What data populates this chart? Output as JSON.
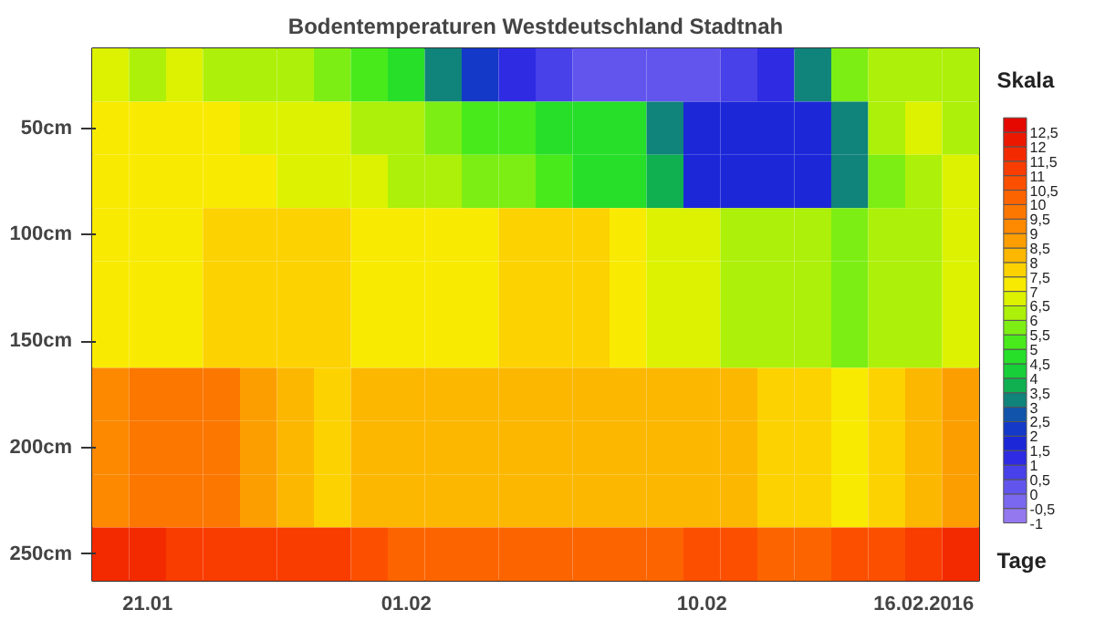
{
  "chart_data": {
    "type": "heatmap",
    "title": "Bodentemperaturen Westdeutschland Stadtnah",
    "xlabel": "Tage",
    "clabel": "Skala",
    "categories": [
      null,
      "21.01",
      null,
      null,
      null,
      null,
      null,
      null,
      "01.02",
      null,
      null,
      null,
      null,
      null,
      null,
      null,
      "10.02",
      null,
      null,
      null,
      null,
      null,
      "16.02.2016",
      null
    ],
    "y_categories": [
      null,
      "50cm",
      null,
      "100cm",
      null,
      "150cm",
      null,
      "200cm",
      null,
      "250cm"
    ],
    "cells": [
      [
        6.5,
        6,
        6.5,
        6,
        6,
        6,
        5.5,
        5,
        4.5,
        3,
        2,
        1,
        0.5,
        0,
        0,
        0,
        0,
        0.5,
        1,
        3,
        5.5,
        6,
        6,
        6
      ],
      [
        7,
        7,
        7,
        7,
        6.5,
        6.5,
        6.5,
        6,
        6,
        5.5,
        5,
        5,
        4.5,
        4.5,
        4.5,
        3,
        1.5,
        1.5,
        1.5,
        1.5,
        3,
        6,
        6.5,
        6
      ],
      [
        7,
        7,
        7,
        7,
        7,
        6.5,
        6.5,
        6.5,
        6,
        6,
        5.5,
        5.5,
        5,
        4.5,
        4.5,
        3.5,
        1.5,
        1.5,
        1.5,
        1.5,
        3,
        5.5,
        6,
        6.5
      ],
      [
        7,
        7,
        7,
        7.5,
        7.5,
        7.5,
        7.5,
        7,
        7,
        7,
        7,
        7.5,
        7.5,
        7.5,
        7,
        6.5,
        6.5,
        6,
        6,
        6,
        5.5,
        6,
        6,
        6.5
      ],
      [
        7,
        7,
        7,
        7.5,
        7.5,
        7.5,
        7.5,
        7,
        7,
        7,
        7,
        7.5,
        7.5,
        7.5,
        7,
        6.5,
        6.5,
        6,
        6,
        6,
        5.5,
        6,
        6,
        6.5
      ],
      [
        7,
        7,
        7,
        7.5,
        7.5,
        7.5,
        7.5,
        7,
        7,
        7,
        7,
        7.5,
        7.5,
        7.5,
        7,
        6.5,
        6.5,
        6,
        6,
        6,
        5.5,
        6,
        6,
        6.5
      ],
      [
        9,
        9.5,
        9.5,
        9.5,
        8.5,
        8,
        7.5,
        8,
        8,
        8,
        8,
        8,
        8,
        8,
        8,
        8,
        8,
        8,
        7.5,
        7.5,
        7,
        7.5,
        8,
        8.5
      ],
      [
        9,
        9.5,
        9.5,
        9.5,
        8.5,
        8,
        7.5,
        8,
        8,
        8,
        8,
        8,
        8,
        8,
        8,
        8,
        8,
        8,
        7.5,
        7.5,
        7,
        7.5,
        8,
        8.5
      ],
      [
        9,
        9.5,
        9.5,
        9.5,
        8.5,
        8,
        7.5,
        8,
        8,
        8,
        8,
        8,
        8,
        8,
        8,
        8,
        8,
        8,
        7.5,
        7.5,
        7,
        7.5,
        8,
        8.5
      ],
      [
        11.5,
        11.5,
        11,
        11,
        11,
        11,
        11,
        10.5,
        10,
        10,
        10,
        10,
        10,
        10,
        10,
        10,
        10.5,
        10.5,
        10,
        10,
        10.5,
        10.5,
        11,
        11.5
      ]
    ],
    "clim": [
      -1,
      13
    ],
    "cticks": [
      {
        "value": -1,
        "label": "-1"
      },
      {
        "value": -0.5,
        "label": "-0,5"
      },
      0,
      {
        "value": 0.5,
        "label": "0,5"
      },
      1,
      {
        "value": 1.5,
        "label": "1,5"
      },
      2,
      {
        "value": 2.5,
        "label": "2,5"
      },
      3,
      {
        "value": 3.5,
        "label": "3,5"
      },
      4,
      {
        "value": 4.5,
        "label": "4,5"
      },
      5,
      {
        "value": 5.5,
        "label": "5,5"
      },
      6,
      {
        "value": 6.5,
        "label": "6,5"
      },
      7,
      {
        "value": 7.5,
        "label": "7,5"
      },
      8,
      {
        "value": 8.5,
        "label": "8,5"
      },
      9,
      {
        "value": 9.5,
        "label": "9,5"
      },
      10,
      {
        "value": 10.5,
        "label": "10,5"
      },
      11,
      {
        "value": 11.5,
        "label": "11,5"
      },
      12,
      {
        "value": 12.5,
        "label": "12,5"
      }
    ]
  }
}
